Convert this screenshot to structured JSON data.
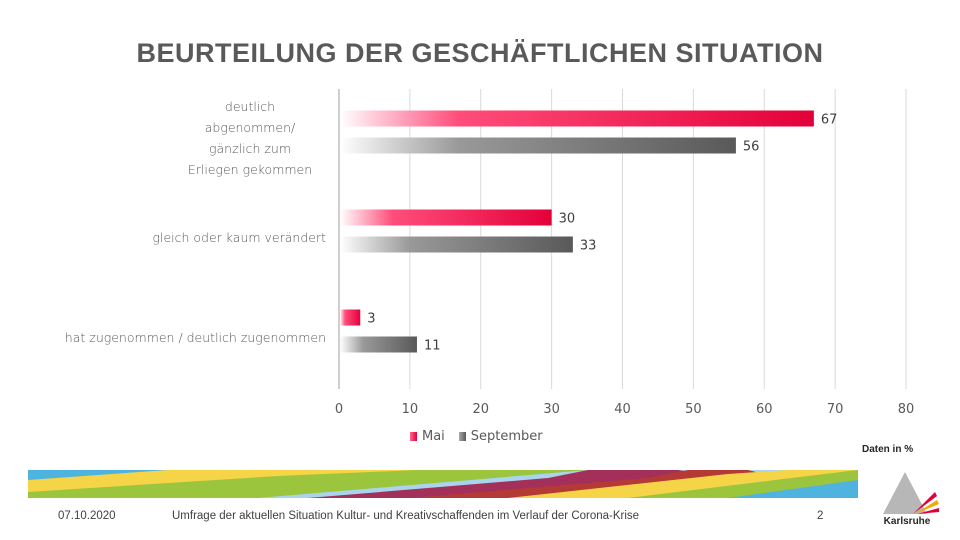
{
  "slide": {
    "title": "BEURTEILUNG DER GESCHÄFTLICHEN SITUATION",
    "unit_note": "Daten in %",
    "footer": {
      "date": "07.10.2020",
      "subject": "Umfrage der aktuellen Situation Kultur-  und Kreativschaffenden im Verlauf der Corona-Krise",
      "page_number": "2"
    },
    "logo_text": "Karlsruhe"
  },
  "chart_data": {
    "type": "bar",
    "orientation": "horizontal",
    "title": "BEURTEILUNG DER GESCHÄFTLICHEN SITUATION",
    "xlabel": "",
    "ylabel": "",
    "xlim": [
      0,
      80
    ],
    "xticks": [
      0,
      10,
      20,
      30,
      40,
      50,
      60,
      70,
      80
    ],
    "grid": true,
    "legend_position": "bottom",
    "categories": [
      "deutlich abgenommen/ gänzlich zum Erliegen gekommen",
      "gleich oder kaum verändert",
      "hat zugenommen / deutlich zugenommen"
    ],
    "category_label_lines": [
      [
        "deutlich",
        "abgenommen/",
        "gänzlich zum",
        "Erliegen gekommen"
      ],
      [
        "gleich oder kaum verändert"
      ],
      [
        "hat zugenommen / deutlich zugenommen"
      ]
    ],
    "series": [
      {
        "name": "Mai",
        "values": [
          67,
          30,
          3
        ],
        "color": "#E4003A"
      },
      {
        "name": "September",
        "values": [
          56,
          33,
          11
        ],
        "color": "#595959"
      }
    ],
    "value_unit": "%"
  },
  "colors": {
    "mai": "#E4003A",
    "september": "#595959",
    "grid": "#D9D9D9",
    "text": "#595959"
  }
}
